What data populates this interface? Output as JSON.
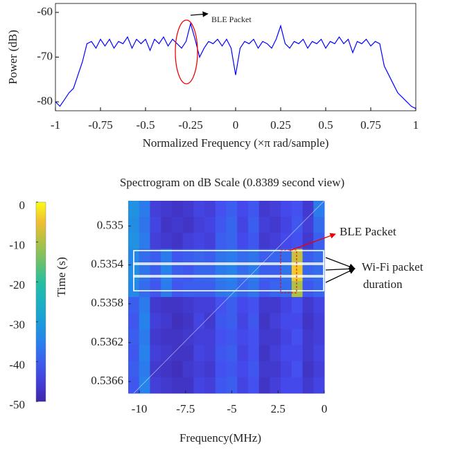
{
  "chart_data": [
    {
      "type": "line",
      "xlabel": "Normalized Frequency  (×π rad/sample)",
      "ylabel": "Power (dB)",
      "annotations": [
        "BLE Packet"
      ],
      "xlim": [
        -1,
        1
      ],
      "ylim": [
        -82,
        -58
      ],
      "xticks": [
        -1,
        -0.75,
        -0.5,
        -0.25,
        0,
        0.25,
        0.5,
        0.75,
        1
      ],
      "yticks": [
        -80,
        -70,
        -60
      ],
      "series": [
        {
          "color": "#0000ff",
          "x": [
            -1,
            -0.975,
            -0.95,
            -0.925,
            -0.9,
            -0.875,
            -0.85,
            -0.825,
            -0.8,
            -0.775,
            -0.75,
            -0.725,
            -0.7,
            -0.675,
            -0.65,
            -0.625,
            -0.6,
            -0.575,
            -0.55,
            -0.525,
            -0.5,
            -0.475,
            -0.45,
            -0.425,
            -0.4,
            -0.375,
            -0.35,
            -0.325,
            -0.3,
            -0.275,
            -0.25,
            -0.225,
            -0.2,
            -0.175,
            -0.15,
            -0.125,
            -0.1,
            -0.075,
            -0.05,
            -0.025,
            0,
            0.025,
            0.05,
            0.075,
            0.1,
            0.125,
            0.15,
            0.175,
            0.2,
            0.225,
            0.25,
            0.275,
            0.3,
            0.325,
            0.35,
            0.375,
            0.4,
            0.425,
            0.45,
            0.475,
            0.5,
            0.525,
            0.55,
            0.575,
            0.6,
            0.625,
            0.65,
            0.675,
            0.7,
            0.725,
            0.75,
            0.775,
            0.8,
            0.825,
            0.85,
            0.875,
            0.9,
            0.925,
            0.95,
            0.975,
            1
          ],
          "values": [
            -80,
            -81,
            -79.5,
            -78,
            -77,
            -74,
            -71,
            -67,
            -66.5,
            -68,
            -66,
            -67.5,
            -66,
            -68,
            -66.5,
            -67,
            -65.5,
            -68,
            -66,
            -67,
            -66,
            -68.5,
            -66,
            -67,
            -65.5,
            -67.5,
            -66,
            -67,
            -68,
            -66.5,
            -62.5,
            -66,
            -70,
            -68,
            -66.5,
            -67,
            -66,
            -67.5,
            -66,
            -68,
            -74,
            -68,
            -66.5,
            -67,
            -66,
            -68,
            -66.5,
            -67,
            -68,
            -66,
            -63,
            -67,
            -68,
            -66.5,
            -67,
            -66,
            -68,
            -66.5,
            -67,
            -66,
            -68,
            -66.5,
            -67,
            -65.5,
            -67,
            -66,
            -69,
            -66.5,
            -67,
            -66,
            -67.5,
            -66.5,
            -67,
            -72,
            -74,
            -76,
            -78,
            -79,
            -80,
            -81,
            -81.5
          ]
        }
      ]
    },
    {
      "type": "heatmap",
      "title": "Spectrogram on dB Scale (0.8389 second view)",
      "xlabel": "Frequency(MHz)",
      "ylabel": "Time (s)",
      "annotations": [
        "BLE Packet",
        "Wi-Fi packet",
        "duration"
      ],
      "xlim": [
        -10.6,
        0
      ],
      "ylim": [
        0.53474,
        0.53672
      ],
      "y_reversed": true,
      "xticks": [
        -10,
        -7.5,
        -5,
        {
          "value": -2.5,
          "label": "2.5"
        },
        0
      ],
      "yticks": [
        0.535,
        0.5354,
        0.5358,
        0.5362,
        0.5366
      ],
      "colormap": "parula",
      "clim": [
        -50,
        0
      ],
      "cticks": [
        0,
        -10,
        -20,
        -30,
        -40,
        -50
      ],
      "z": [
        [
          -32,
          -36,
          -45,
          -46,
          -47,
          -46,
          -44,
          -45,
          -42,
          -40,
          -43,
          -41,
          -46,
          -45,
          -43,
          -42,
          -46,
          -36
        ],
        [
          -33,
          -37,
          -44,
          -47,
          -46,
          -47,
          -45,
          -44,
          -41,
          -39,
          -44,
          -40,
          -45,
          -46,
          -44,
          -41,
          -45,
          -38
        ],
        [
          -32,
          -36,
          -45,
          -46,
          -47,
          -45,
          -44,
          -45,
          -40,
          -39,
          -43,
          -41,
          -46,
          -45,
          -43,
          -42,
          -46,
          -40
        ],
        [
          -34,
          -38,
          -40,
          -36,
          -41,
          -40,
          -39,
          -40,
          -37,
          -36,
          -38,
          -37,
          -40,
          -39,
          -38,
          -8,
          -40,
          -38
        ],
        [
          -33,
          -37,
          -40,
          -35,
          -40,
          -41,
          -39,
          -39,
          -36,
          -35,
          -38,
          -36,
          -40,
          -40,
          -37,
          -4,
          -39,
          -38
        ],
        [
          -34,
          -38,
          -41,
          -36,
          -41,
          -40,
          -40,
          -40,
          -37,
          -36,
          -39,
          -37,
          -41,
          -39,
          -38,
          -10,
          -41,
          -39
        ],
        [
          -40,
          -36,
          -46,
          -47,
          -47,
          -46,
          -45,
          -45,
          -42,
          -40,
          -43,
          -42,
          -46,
          -46,
          -44,
          -42,
          -46,
          -44
        ],
        [
          -41,
          -35,
          -45,
          -46,
          -48,
          -47,
          -44,
          -46,
          -41,
          -40,
          -44,
          -41,
          -47,
          -45,
          -43,
          -43,
          -47,
          -45
        ],
        [
          -40,
          -36,
          -46,
          -47,
          -47,
          -46,
          -45,
          -45,
          -42,
          -41,
          -43,
          -42,
          -46,
          -46,
          -44,
          -42,
          -46,
          -45
        ],
        [
          -41,
          -35,
          -45,
          -46,
          -47,
          -47,
          -44,
          -45,
          -41,
          -40,
          -44,
          -42,
          -47,
          -45,
          -43,
          -43,
          -46,
          -44
        ],
        [
          -40,
          -36,
          -46,
          -47,
          -48,
          -46,
          -45,
          -46,
          -42,
          -41,
          -43,
          -41,
          -46,
          -46,
          -44,
          -42,
          -47,
          -45
        ],
        [
          -41,
          -35,
          -45,
          -46,
          -47,
          -47,
          -44,
          -45,
          -41,
          -40,
          -44,
          -42,
          -47,
          -45,
          -43,
          -43,
          -46,
          -44
        ]
      ]
    }
  ]
}
